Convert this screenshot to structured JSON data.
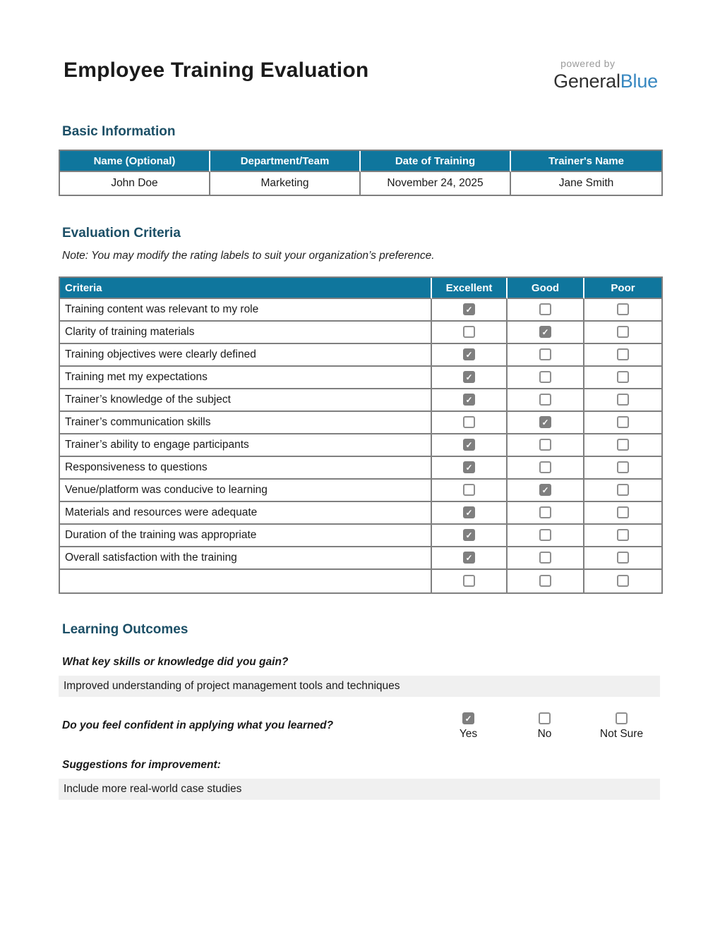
{
  "header": {
    "title": "Employee Training Evaluation",
    "logo": {
      "powered_by": "powered by",
      "brand_general": "General",
      "brand_blue": "Blue"
    }
  },
  "colors": {
    "table_header_teal": "#0f769d",
    "section_heading_teal": "#1c4f66",
    "logo_blue": "#3787c0",
    "checkbox_checked_gray": "#7f7f7f",
    "answer_bar_gray": "#f0f0f0",
    "table_border_gray": "#7f7f7f"
  },
  "basic_info": {
    "heading": "Basic Information",
    "columns": [
      "Name (Optional)",
      "Department/Team",
      "Date of Training",
      "Trainer's Name"
    ],
    "values": [
      "John Doe",
      "Marketing",
      "November 24, 2025",
      "Jane Smith"
    ]
  },
  "evaluation": {
    "heading": "Evaluation Criteria",
    "note": "Note: You may modify the rating labels to suit your organization’s preference.",
    "columns": [
      "Criteria",
      "Excellent",
      "Good",
      "Poor"
    ],
    "rows": [
      {
        "label": "Training content was relevant to my role",
        "rating": "excellent"
      },
      {
        "label": "Clarity of training materials",
        "rating": "good"
      },
      {
        "label": "Training objectives were clearly defined",
        "rating": "excellent"
      },
      {
        "label": "Training met my expectations",
        "rating": "excellent"
      },
      {
        "label": "Trainer’s knowledge of the subject",
        "rating": "excellent"
      },
      {
        "label": "Trainer’s communication skills",
        "rating": "good"
      },
      {
        "label": "Trainer’s ability to engage participants",
        "rating": "excellent"
      },
      {
        "label": "Responsiveness to questions",
        "rating": "excellent"
      },
      {
        "label": "Venue/platform was conducive to learning",
        "rating": "good"
      },
      {
        "label": "Materials and resources were adequate",
        "rating": "excellent"
      },
      {
        "label": "Duration of the training was appropriate",
        "rating": "excellent"
      },
      {
        "label": "Overall satisfaction with the training",
        "rating": "excellent"
      },
      {
        "label": "",
        "rating": ""
      }
    ]
  },
  "learning_outcomes": {
    "heading": "Learning Outcomes",
    "q1": {
      "question": "What key skills or knowledge did you gain?",
      "answer": "Improved understanding of project management tools and techniques"
    },
    "q2": {
      "question": "Do you feel confident in applying what you learned?",
      "options": [
        {
          "label": "Yes",
          "checked": true
        },
        {
          "label": "No",
          "checked": false
        },
        {
          "label": "Not Sure",
          "checked": false
        }
      ]
    },
    "q3": {
      "question": "Suggestions for improvement:",
      "answer": "Include more real-world case studies"
    }
  }
}
